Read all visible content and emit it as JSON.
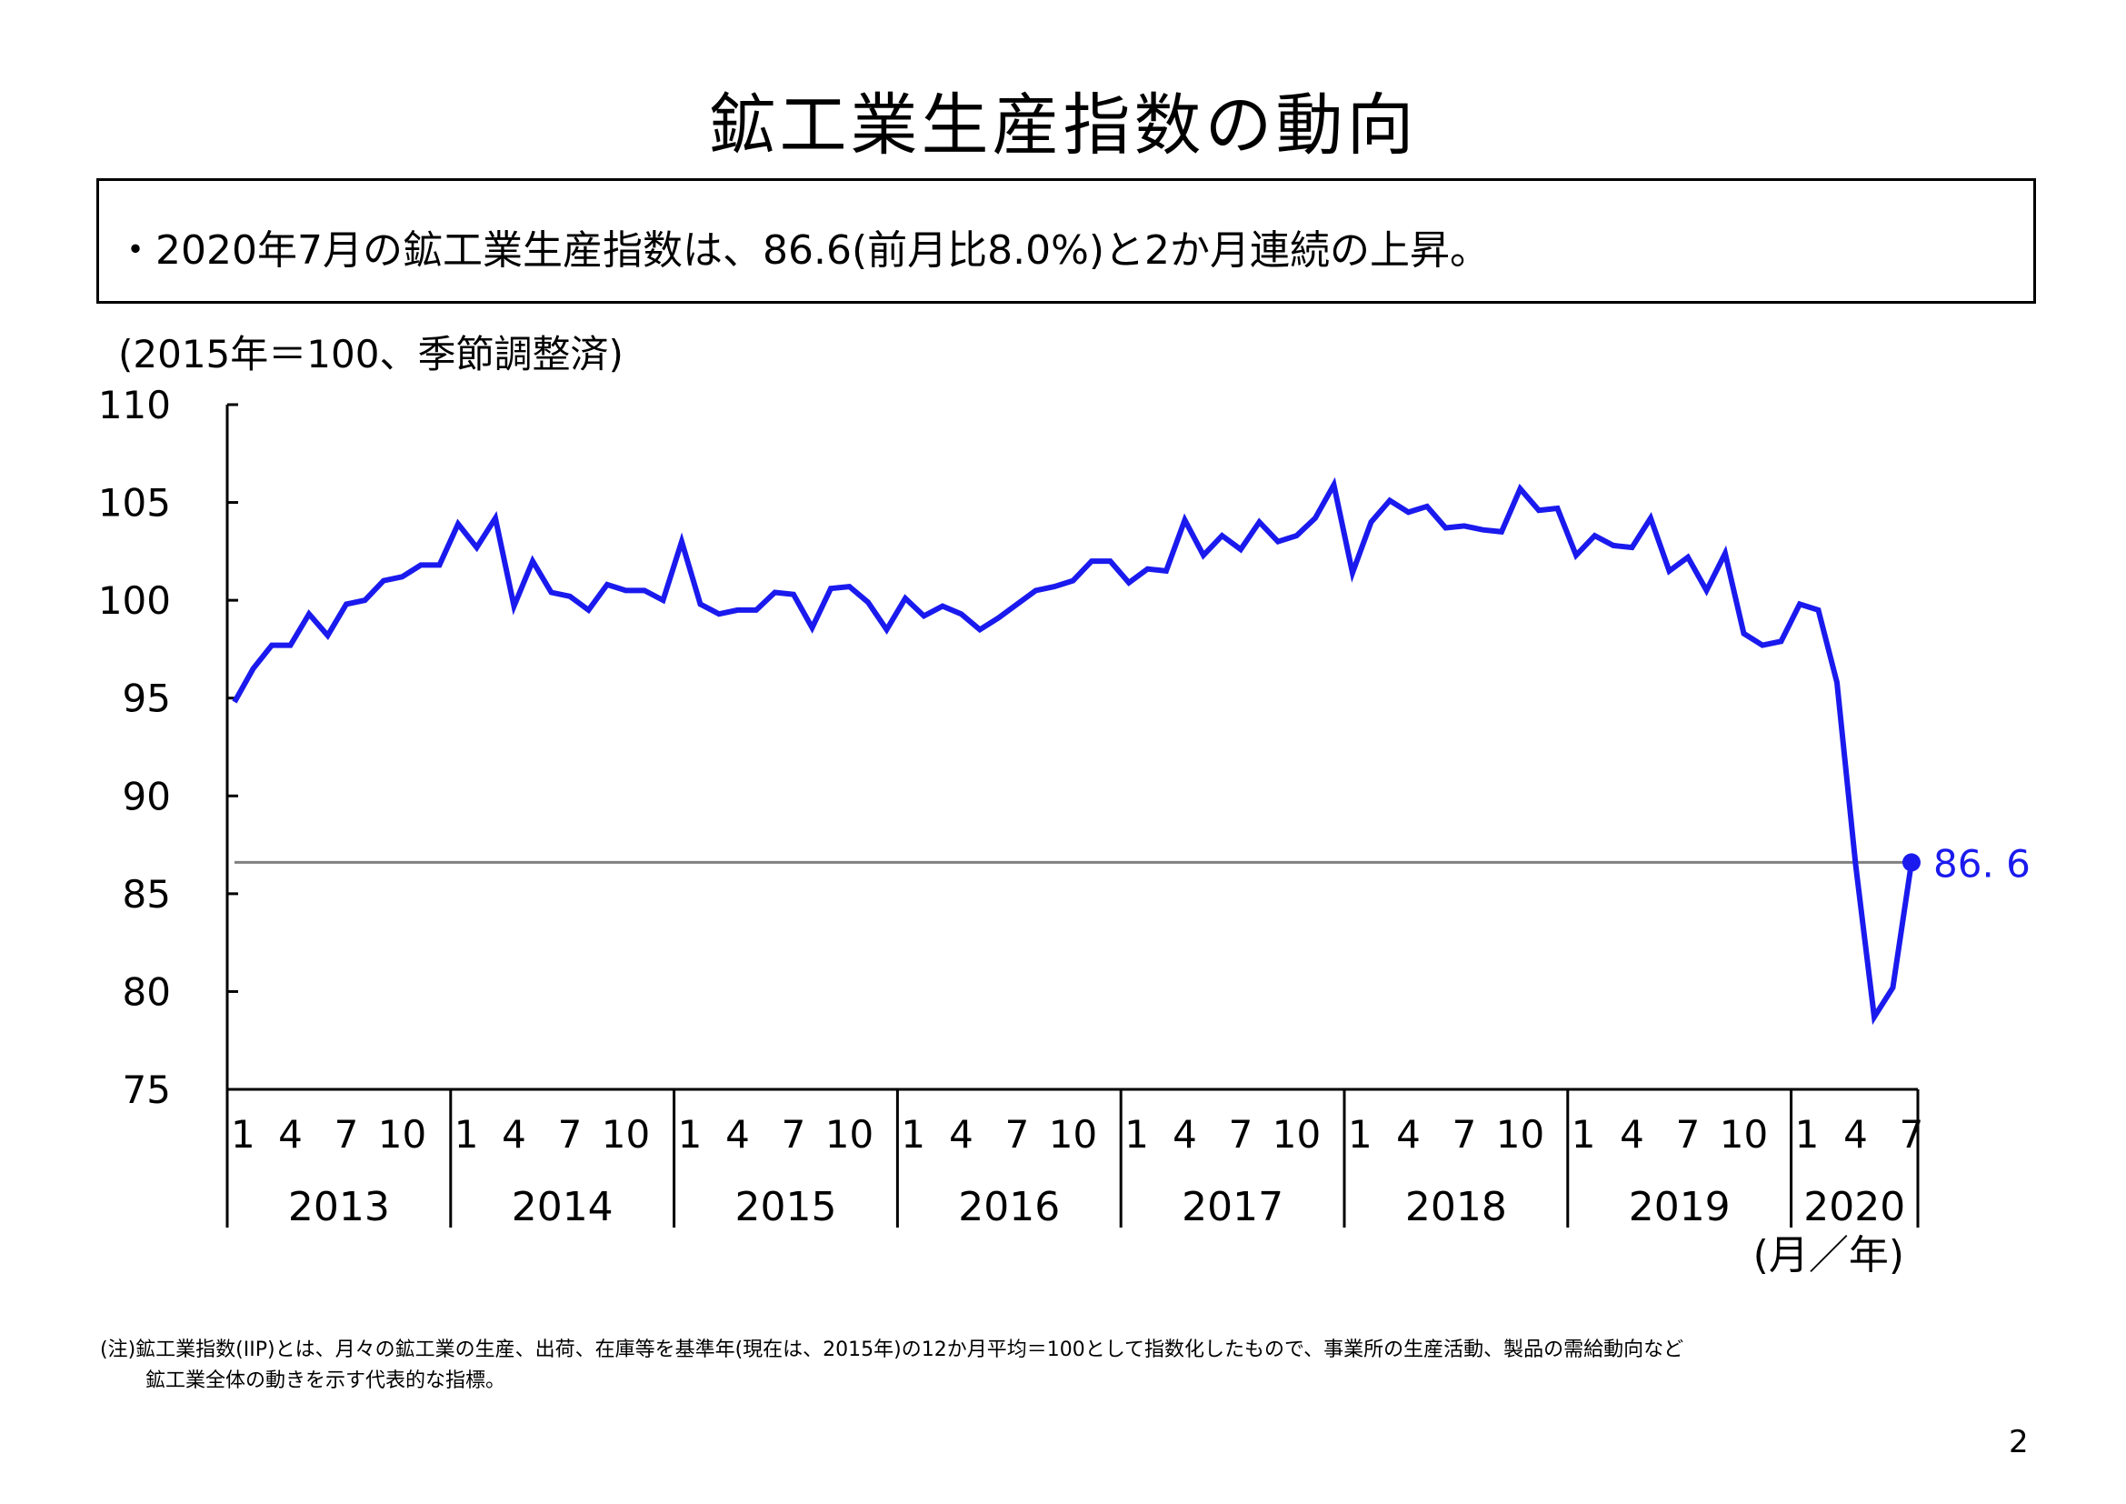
{
  "title": "鉱工業生産指数の動向",
  "summary": "・2020年7月の鉱工業生産指数は、86.6(前月比8.0%)と2か月連続の上昇。",
  "unit_note": "(2015年＝100、季節調整済)",
  "x_unit_label": "(月／年)",
  "footnote": {
    "line1": "(注)鉱工業指数(IIP)とは、月々の鉱工業の生産、出荷、在庫等を基準年(現在は、2015年)の12か月平均＝100として指数化したもので、事業所の生産活動、製品の需給動向など",
    "line2": "鉱工業全体の動きを示す代表的な指標。"
  },
  "page_number": "2",
  "colors": {
    "series": "#1a1aee",
    "refline": "#808080",
    "axis": "#000000"
  },
  "chart_data": {
    "type": "line",
    "title": "鉱工業生産指数の動向",
    "ylabel": "(2015年＝100、季節調整済)",
    "xlabel": "(月／年)",
    "ylim": [
      75,
      110
    ],
    "yticks": [
      75,
      80,
      85,
      90,
      95,
      100,
      105,
      110
    ],
    "grid": false,
    "month_tick_labels": [
      "1",
      "4",
      "7",
      "10"
    ],
    "years": [
      "2013",
      "2014",
      "2015",
      "2016",
      "2017",
      "2018",
      "2019",
      "2020"
    ],
    "last_year_months": [
      "1",
      "4",
      "7"
    ],
    "series": [
      {
        "name": "鉱工業生産指数",
        "start": "2013-01",
        "values": [
          94.8,
          96.5,
          97.7,
          97.7,
          99.3,
          98.2,
          99.8,
          100.0,
          101.0,
          101.2,
          101.8,
          101.8,
          103.9,
          102.7,
          104.2,
          99.7,
          102.0,
          100.4,
          100.2,
          99.5,
          100.8,
          100.5,
          100.5,
          100.0,
          103.0,
          99.8,
          99.3,
          99.5,
          99.5,
          100.4,
          100.3,
          98.6,
          100.6,
          100.7,
          99.9,
          98.5,
          100.1,
          99.2,
          99.7,
          99.3,
          98.5,
          99.1,
          99.8,
          100.5,
          100.7,
          101.0,
          102.0,
          102.0,
          100.9,
          101.6,
          101.5,
          104.1,
          102.3,
          103.3,
          102.6,
          104.0,
          103.0,
          103.3,
          104.2,
          105.9,
          101.4,
          104.0,
          105.1,
          104.5,
          104.8,
          103.7,
          103.8,
          103.6,
          103.5,
          105.7,
          104.6,
          104.7,
          102.3,
          103.3,
          102.8,
          102.7,
          104.2,
          101.5,
          102.2,
          100.5,
          102.4,
          98.3,
          97.7,
          97.9,
          99.8,
          99.5,
          95.8,
          86.5,
          78.7,
          80.2,
          86.6
        ]
      }
    ],
    "reference_line": 86.6,
    "last_value_label": "86. 6"
  }
}
